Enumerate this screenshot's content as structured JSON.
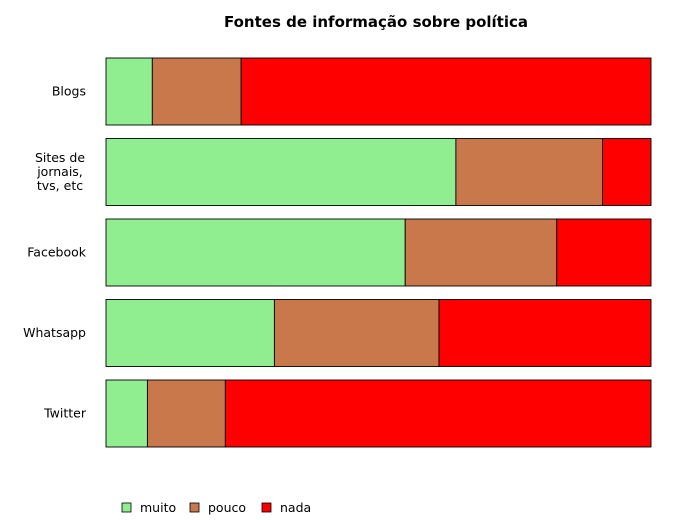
{
  "chart_data": {
    "type": "bar",
    "orientation": "horizontal",
    "stacked": true,
    "normalized": true,
    "title": "Fontes de informação sobre política",
    "categories": [
      [
        "Blogs"
      ],
      [
        "Sites de",
        "jornais,",
        "tvs, etc"
      ],
      [
        "Facebook"
      ],
      [
        "Whatsapp"
      ],
      [
        "Twitter"
      ]
    ],
    "series": [
      {
        "name": "muito",
        "color": "#90EE90",
        "values": [
          0.085,
          0.642,
          0.549,
          0.309,
          0.076
        ]
      },
      {
        "name": "pouco",
        "color": "#C8784A",
        "values": [
          0.163,
          0.269,
          0.278,
          0.302,
          0.143
        ]
      },
      {
        "name": "nada",
        "color": "#FF0000",
        "values": [
          0.752,
          0.089,
          0.173,
          0.389,
          0.781
        ]
      }
    ],
    "xlim": [
      0,
      1
    ],
    "grid": false,
    "legend_position": "bottom-left"
  }
}
